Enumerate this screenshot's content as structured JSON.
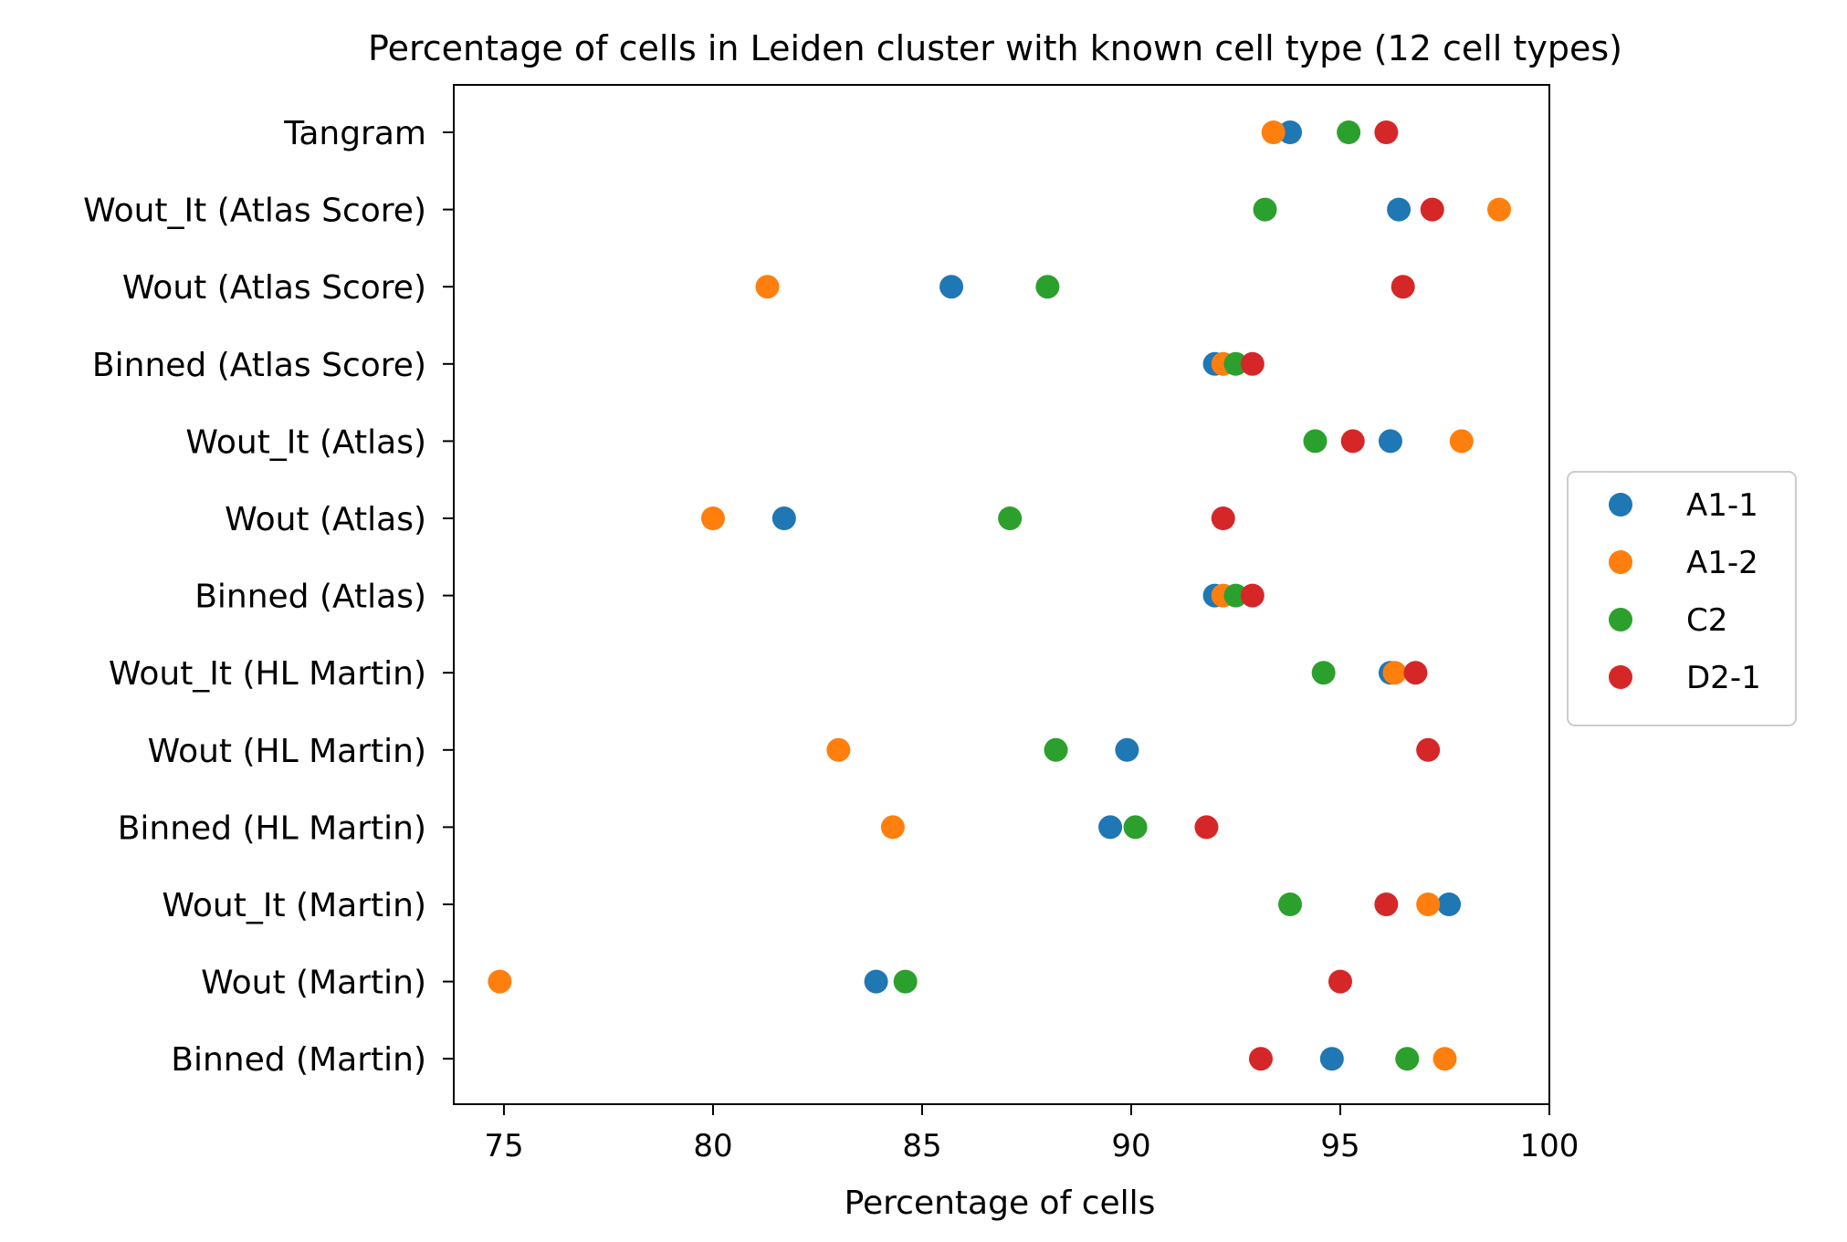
{
  "chart_data": {
    "type": "scatter",
    "title": "Percentage of cells in Leiden cluster with known cell type (12 cell types)",
    "xlabel": "Percentage of cells",
    "ylabel": "",
    "xlim": [
      73.8,
      100
    ],
    "xticks": [
      "75",
      "80",
      "85",
      "90",
      "95",
      "100"
    ],
    "categories": [
      "Tangram",
      "Wout_It (Atlas Score)",
      "Wout (Atlas Score)",
      "Binned (Atlas Score)",
      "Wout_It (Atlas)",
      "Wout (Atlas)",
      "Binned (Atlas)",
      "Wout_It (HL Martin)",
      "Wout (HL Martin)",
      "Binned (HL Martin)",
      "Wout_It (Martin)",
      "Wout (Martin)",
      "Binned (Martin)"
    ],
    "legend_position": "right",
    "series": [
      {
        "name": "A1-1",
        "color": "#1f77b4",
        "values": [
          93.8,
          96.4,
          85.7,
          92.0,
          96.2,
          81.7,
          92.0,
          96.2,
          89.9,
          89.5,
          97.6,
          83.9,
          94.8
        ]
      },
      {
        "name": "A1-2",
        "color": "#ff7f0e",
        "values": [
          93.4,
          98.8,
          81.3,
          92.2,
          97.9,
          80.0,
          92.2,
          96.3,
          83.0,
          84.3,
          97.1,
          74.9,
          97.5
        ]
      },
      {
        "name": "C2",
        "color": "#2ca02c",
        "values": [
          95.2,
          93.2,
          88.0,
          92.5,
          94.4,
          87.1,
          92.5,
          94.6,
          88.2,
          90.1,
          93.8,
          84.6,
          96.6
        ]
      },
      {
        "name": "D2-1",
        "color": "#d62728",
        "values": [
          96.1,
          97.2,
          96.5,
          92.9,
          95.3,
          92.2,
          92.9,
          96.8,
          97.1,
          91.8,
          96.1,
          95.0,
          93.1
        ]
      }
    ]
  }
}
